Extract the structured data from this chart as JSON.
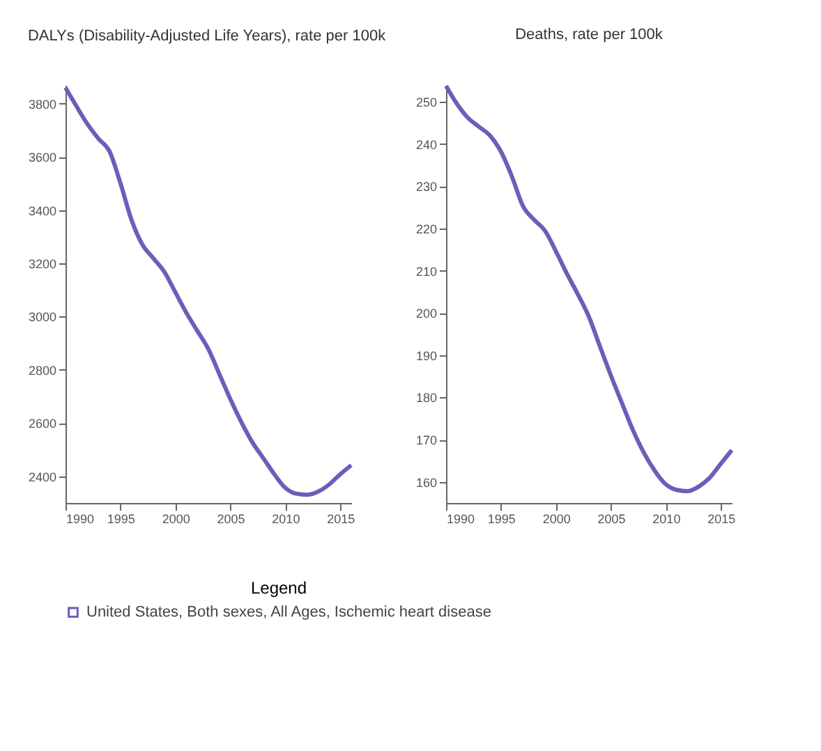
{
  "chart_data": [
    {
      "type": "line",
      "title": "DALYs (Disability-Adjusted Life Years), rate per 100k",
      "x": [
        1990,
        1991,
        1992,
        1993,
        1994,
        1995,
        1996,
        1997,
        1998,
        1999,
        2000,
        2001,
        2002,
        2003,
        2004,
        2005,
        2006,
        2007,
        2008,
        2009,
        2010,
        2011,
        2012,
        2013,
        2014,
        2015,
        2016
      ],
      "series": [
        {
          "name": "United States, Both sexes, All Ages, Ischemic heart disease",
          "color": "#6a5fb8",
          "values": [
            3860,
            3790,
            3723,
            3668,
            3621,
            3501,
            3364,
            3270,
            3219,
            3168,
            3091,
            3014,
            2946,
            2878,
            2784,
            2690,
            2604,
            2528,
            2468,
            2408,
            2357,
            2335,
            2331,
            2343,
            2370,
            2408,
            2442
          ]
        }
      ],
      "xlim": [
        1990,
        2016
      ],
      "xticks": [
        1990,
        1995,
        2000,
        2005,
        2010,
        2015
      ],
      "ylim": [
        2300,
        3870
      ],
      "yticks": [
        2400,
        2600,
        2800,
        3000,
        3200,
        3400,
        3600,
        3800
      ],
      "grid": false,
      "legend": "bottom",
      "legend_title": "Legend",
      "marker": "none"
    },
    {
      "type": "line",
      "title": "Deaths, rate per 100k",
      "x": [
        1990,
        1991,
        1992,
        1993,
        1994,
        1995,
        1996,
        1997,
        1998,
        1999,
        2000,
        2001,
        2002,
        2003,
        2004,
        2005,
        2006,
        2007,
        2008,
        2009,
        2010,
        2011,
        2012,
        2013,
        2014,
        2015,
        2016
      ],
      "series": [
        {
          "name": "United States, Both sexes, All Ages, Ischemic heart disease",
          "color": "#6a5fb8",
          "values": [
            253.8,
            249.5,
            246.2,
            244.1,
            242.0,
            238.2,
            232.3,
            225.3,
            222.1,
            219.5,
            214.6,
            209.3,
            204.4,
            199.1,
            192.1,
            185.2,
            178.7,
            172.3,
            166.9,
            162.6,
            159.4,
            158.1,
            157.8,
            158.9,
            161.0,
            164.3,
            167.5
          ]
        }
      ],
      "xlim": [
        1990,
        2016
      ],
      "xticks": [
        1990,
        1995,
        2000,
        2005,
        2010,
        2015
      ],
      "ylim": [
        155,
        254
      ],
      "yticks": [
        160,
        170,
        180,
        190,
        200,
        210,
        220,
        230,
        240,
        250
      ],
      "grid": false,
      "marker": "none"
    }
  ]
}
